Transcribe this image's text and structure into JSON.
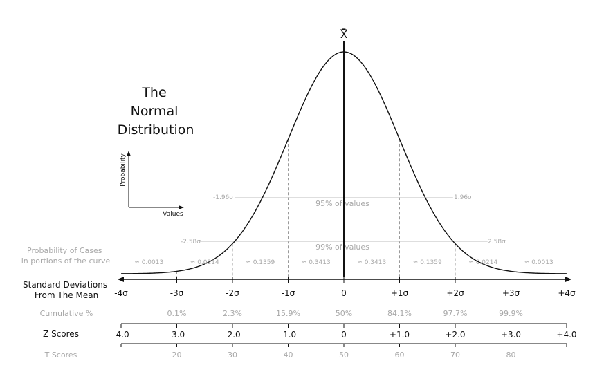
{
  "title_lines": [
    "The",
    "Normal",
    "Distribution"
  ],
  "mean_symbol": "X̄",
  "axes_inset": {
    "ylabel": "Probability",
    "xlabel": "Values"
  },
  "colors": {
    "ink": "#111111",
    "muted": "#a8a8a8",
    "guide": "#bdbdbd"
  },
  "bands": {
    "b95": {
      "label": "95% of values",
      "left": "-1.96σ",
      "right": "1.96σ",
      "z": 1.96
    },
    "b99": {
      "label": "99% of values",
      "left": "-2.58σ",
      "right": "2.58σ",
      "z": 2.58
    }
  },
  "rows": {
    "prob_label": "Probability of Cases\nin portions of the curve",
    "sd_label": "Standard Deviations\nFrom The Mean",
    "cum_label": "Cumulative %",
    "z_label": "Z Scores",
    "t_label": "T Scores"
  },
  "chart_data": {
    "type": "line",
    "x_range": [
      -4,
      4
    ],
    "sigma_positions": [
      -4,
      -3,
      -2,
      -1,
      0,
      1,
      2,
      3,
      4
    ],
    "proportions": [
      "≈ 0.0013",
      "≈ 0.0214",
      "≈ 0.1359",
      "≈ 0.3413",
      "≈ 0.3413",
      "≈ 0.1359",
      "≈ 0.0214",
      "≈ 0.0013"
    ],
    "sd_labels": [
      "-4σ",
      "-3σ",
      "-2σ",
      "-1σ",
      "0",
      "+1σ",
      "+2σ",
      "+3σ",
      "+4σ"
    ],
    "cumulative": [
      {
        "x": -3,
        "label": "0.1%"
      },
      {
        "x": -2,
        "label": "2.3%"
      },
      {
        "x": -1,
        "label": "15.9%"
      },
      {
        "x": 0,
        "label": "50%"
      },
      {
        "x": 1,
        "label": "84.1%"
      },
      {
        "x": 2,
        "label": "97.7%"
      },
      {
        "x": 3,
        "label": "99.9%"
      }
    ],
    "z_scores": [
      "-4.0",
      "-3.0",
      "-2.0",
      "-1.0",
      "0",
      "+1.0",
      "+2.0",
      "+3.0",
      "+4.0"
    ],
    "t_scores": [
      {
        "x": -3,
        "label": "20"
      },
      {
        "x": -2,
        "label": "30"
      },
      {
        "x": -1,
        "label": "40"
      },
      {
        "x": 0,
        "label": "50"
      },
      {
        "x": 1,
        "label": "60"
      },
      {
        "x": 2,
        "label": "70"
      },
      {
        "x": 3,
        "label": "80"
      }
    ]
  }
}
